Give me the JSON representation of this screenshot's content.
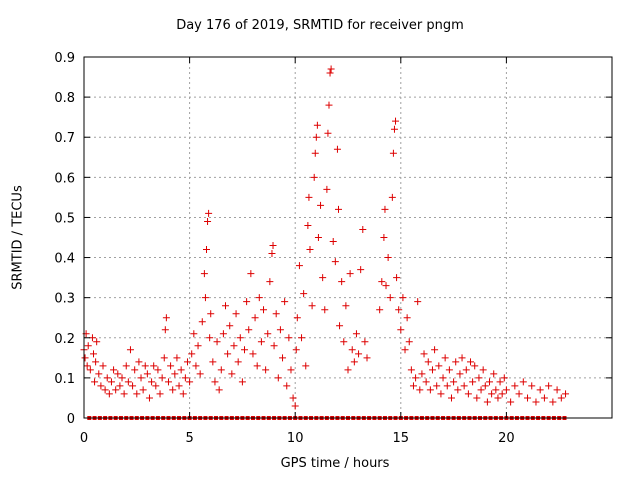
{
  "chart_data": {
    "type": "scatter",
    "title": "Day 176 of 2019, SRMTID for receiver pngm",
    "xlabel": "GPS time / hours",
    "ylabel": "SRMTID / TECUs",
    "xlim": [
      0,
      25
    ],
    "ylim": [
      0,
      0.9
    ],
    "xticks": [
      0,
      5,
      10,
      15,
      20
    ],
    "yticks": [
      0,
      0.1,
      0.2,
      0.3,
      0.4,
      0.5,
      0.6,
      0.7,
      0.8,
      0.9
    ],
    "ytick_labels": [
      "0",
      "0.1",
      "0.2",
      "0.3",
      "0.4",
      "0.5",
      "0.6",
      "0.7",
      "0.8",
      "0.9"
    ],
    "grid": true,
    "marker": "+",
    "color": "#dd0000",
    "zero_marker": "square",
    "x_span_hours": [
      0,
      22.8
    ],
    "series": [
      {
        "name": "SRMTID",
        "points": [
          [
            0.0,
            0.17
          ],
          [
            0.05,
            0.15
          ],
          [
            0.1,
            0.21
          ],
          [
            0.15,
            0.13
          ],
          [
            0.2,
            0.18
          ],
          [
            0.3,
            0.12
          ],
          [
            0.4,
            0.2
          ],
          [
            0.45,
            0.16
          ],
          [
            0.5,
            0.09
          ],
          [
            0.55,
            0.14
          ],
          [
            0.6,
            0.19
          ],
          [
            0.7,
            0.11
          ],
          [
            0.8,
            0.08
          ],
          [
            0.9,
            0.13
          ],
          [
            1.0,
            0.07
          ],
          [
            1.1,
            0.1
          ],
          [
            1.2,
            0.06
          ],
          [
            1.3,
            0.09
          ],
          [
            1.4,
            0.12
          ],
          [
            1.5,
            0.07
          ],
          [
            1.6,
            0.11
          ],
          [
            1.7,
            0.08
          ],
          [
            1.8,
            0.1
          ],
          [
            1.9,
            0.06
          ],
          [
            2.0,
            0.13
          ],
          [
            2.1,
            0.09
          ],
          [
            2.2,
            0.17
          ],
          [
            2.3,
            0.08
          ],
          [
            2.4,
            0.12
          ],
          [
            2.5,
            0.06
          ],
          [
            2.6,
            0.14
          ],
          [
            2.7,
            0.1
          ],
          [
            2.8,
            0.07
          ],
          [
            2.9,
            0.13
          ],
          [
            3.0,
            0.11
          ],
          [
            3.1,
            0.05
          ],
          [
            3.2,
            0.09
          ],
          [
            3.3,
            0.13
          ],
          [
            3.4,
            0.08
          ],
          [
            3.5,
            0.12
          ],
          [
            3.6,
            0.06
          ],
          [
            3.7,
            0.1
          ],
          [
            3.8,
            0.15
          ],
          [
            3.85,
            0.22
          ],
          [
            3.9,
            0.25
          ],
          [
            4.0,
            0.09
          ],
          [
            4.1,
            0.13
          ],
          [
            4.2,
            0.07
          ],
          [
            4.3,
            0.11
          ],
          [
            4.4,
            0.15
          ],
          [
            4.5,
            0.08
          ],
          [
            4.6,
            0.12
          ],
          [
            4.7,
            0.06
          ],
          [
            4.8,
            0.1
          ],
          [
            4.9,
            0.14
          ],
          [
            5.0,
            0.09
          ],
          [
            5.1,
            0.16
          ],
          [
            5.2,
            0.21
          ],
          [
            5.3,
            0.13
          ],
          [
            5.4,
            0.18
          ],
          [
            5.5,
            0.11
          ],
          [
            5.6,
            0.24
          ],
          [
            5.7,
            0.36
          ],
          [
            5.75,
            0.3
          ],
          [
            5.8,
            0.42
          ],
          [
            5.85,
            0.49
          ],
          [
            5.9,
            0.51
          ],
          [
            5.95,
            0.2
          ],
          [
            6.0,
            0.26
          ],
          [
            6.1,
            0.14
          ],
          [
            6.2,
            0.09
          ],
          [
            6.3,
            0.19
          ],
          [
            6.4,
            0.07
          ],
          [
            6.5,
            0.12
          ],
          [
            6.6,
            0.21
          ],
          [
            6.7,
            0.28
          ],
          [
            6.8,
            0.16
          ],
          [
            6.9,
            0.23
          ],
          [
            7.0,
            0.11
          ],
          [
            7.1,
            0.18
          ],
          [
            7.2,
            0.26
          ],
          [
            7.3,
            0.14
          ],
          [
            7.4,
            0.2
          ],
          [
            7.5,
            0.09
          ],
          [
            7.6,
            0.17
          ],
          [
            7.7,
            0.29
          ],
          [
            7.8,
            0.22
          ],
          [
            7.9,
            0.36
          ],
          [
            8.0,
            0.16
          ],
          [
            8.1,
            0.25
          ],
          [
            8.2,
            0.13
          ],
          [
            8.3,
            0.3
          ],
          [
            8.4,
            0.19
          ],
          [
            8.5,
            0.27
          ],
          [
            8.6,
            0.12
          ],
          [
            8.7,
            0.21
          ],
          [
            8.8,
            0.34
          ],
          [
            8.9,
            0.41
          ],
          [
            8.95,
            0.43
          ],
          [
            9.0,
            0.18
          ],
          [
            9.1,
            0.26
          ],
          [
            9.2,
            0.1
          ],
          [
            9.3,
            0.22
          ],
          [
            9.4,
            0.15
          ],
          [
            9.5,
            0.29
          ],
          [
            9.6,
            0.08
          ],
          [
            9.7,
            0.2
          ],
          [
            9.8,
            0.12
          ],
          [
            9.9,
            0.05
          ],
          [
            10.0,
            0.03
          ],
          [
            10.05,
            0.17
          ],
          [
            10.1,
            0.25
          ],
          [
            10.2,
            0.38
          ],
          [
            10.3,
            0.2
          ],
          [
            10.4,
            0.31
          ],
          [
            10.5,
            0.13
          ],
          [
            10.6,
            0.48
          ],
          [
            10.65,
            0.55
          ],
          [
            10.7,
            0.42
          ],
          [
            10.8,
            0.28
          ],
          [
            10.9,
            0.6
          ],
          [
            10.95,
            0.66
          ],
          [
            11.0,
            0.7
          ],
          [
            11.05,
            0.73
          ],
          [
            11.1,
            0.45
          ],
          [
            11.2,
            0.53
          ],
          [
            11.3,
            0.35
          ],
          [
            11.4,
            0.27
          ],
          [
            11.5,
            0.57
          ],
          [
            11.55,
            0.71
          ],
          [
            11.6,
            0.78
          ],
          [
            11.65,
            0.86
          ],
          [
            11.7,
            0.87
          ],
          [
            11.8,
            0.44
          ],
          [
            11.9,
            0.39
          ],
          [
            12.0,
            0.67
          ],
          [
            12.05,
            0.52
          ],
          [
            12.1,
            0.23
          ],
          [
            12.2,
            0.34
          ],
          [
            12.3,
            0.19
          ],
          [
            12.4,
            0.28
          ],
          [
            12.5,
            0.12
          ],
          [
            12.6,
            0.36
          ],
          [
            12.7,
            0.17
          ],
          [
            12.8,
            0.14
          ],
          [
            12.9,
            0.21
          ],
          [
            13.0,
            0.16
          ],
          [
            13.1,
            0.37
          ],
          [
            13.2,
            0.47
          ],
          [
            13.3,
            0.19
          ],
          [
            13.4,
            0.15
          ],
          [
            14.0,
            0.27
          ],
          [
            14.1,
            0.34
          ],
          [
            14.2,
            0.45
          ],
          [
            14.25,
            0.52
          ],
          [
            14.3,
            0.33
          ],
          [
            14.4,
            0.4
          ],
          [
            14.5,
            0.3
          ],
          [
            14.6,
            0.55
          ],
          [
            14.65,
            0.66
          ],
          [
            14.7,
            0.72
          ],
          [
            14.75,
            0.74
          ],
          [
            14.8,
            0.35
          ],
          [
            14.9,
            0.27
          ],
          [
            15.0,
            0.22
          ],
          [
            15.1,
            0.3
          ],
          [
            15.2,
            0.17
          ],
          [
            15.3,
            0.25
          ],
          [
            15.4,
            0.19
          ],
          [
            15.5,
            0.12
          ],
          [
            15.6,
            0.08
          ],
          [
            15.7,
            0.1
          ],
          [
            15.8,
            0.29
          ],
          [
            15.9,
            0.07
          ],
          [
            16.0,
            0.11
          ],
          [
            16.1,
            0.16
          ],
          [
            16.2,
            0.09
          ],
          [
            16.3,
            0.14
          ],
          [
            16.4,
            0.07
          ],
          [
            16.5,
            0.12
          ],
          [
            16.6,
            0.17
          ],
          [
            16.7,
            0.08
          ],
          [
            16.8,
            0.13
          ],
          [
            16.9,
            0.06
          ],
          [
            17.0,
            0.1
          ],
          [
            17.1,
            0.15
          ],
          [
            17.2,
            0.08
          ],
          [
            17.3,
            0.12
          ],
          [
            17.4,
            0.05
          ],
          [
            17.5,
            0.09
          ],
          [
            17.6,
            0.14
          ],
          [
            17.7,
            0.07
          ],
          [
            17.8,
            0.11
          ],
          [
            17.9,
            0.15
          ],
          [
            18.0,
            0.08
          ],
          [
            18.1,
            0.12
          ],
          [
            18.2,
            0.06
          ],
          [
            18.3,
            0.14
          ],
          [
            18.4,
            0.09
          ],
          [
            18.5,
            0.13
          ],
          [
            18.6,
            0.05
          ],
          [
            18.7,
            0.1
          ],
          [
            18.8,
            0.07
          ],
          [
            18.9,
            0.12
          ],
          [
            19.0,
            0.08
          ],
          [
            19.1,
            0.04
          ],
          [
            19.2,
            0.09
          ],
          [
            19.3,
            0.06
          ],
          [
            19.4,
            0.11
          ],
          [
            19.5,
            0.07
          ],
          [
            19.6,
            0.05
          ],
          [
            19.7,
            0.09
          ],
          [
            19.8,
            0.06
          ],
          [
            19.9,
            0.1
          ],
          [
            20.0,
            0.07
          ],
          [
            20.2,
            0.04
          ],
          [
            20.4,
            0.08
          ],
          [
            20.6,
            0.06
          ],
          [
            20.8,
            0.09
          ],
          [
            21.0,
            0.05
          ],
          [
            21.2,
            0.08
          ],
          [
            21.4,
            0.04
          ],
          [
            21.6,
            0.07
          ],
          [
            21.8,
            0.05
          ],
          [
            22.0,
            0.08
          ],
          [
            22.2,
            0.04
          ],
          [
            22.4,
            0.07
          ],
          [
            22.6,
            0.05
          ],
          [
            22.8,
            0.06
          ]
        ]
      }
    ]
  }
}
